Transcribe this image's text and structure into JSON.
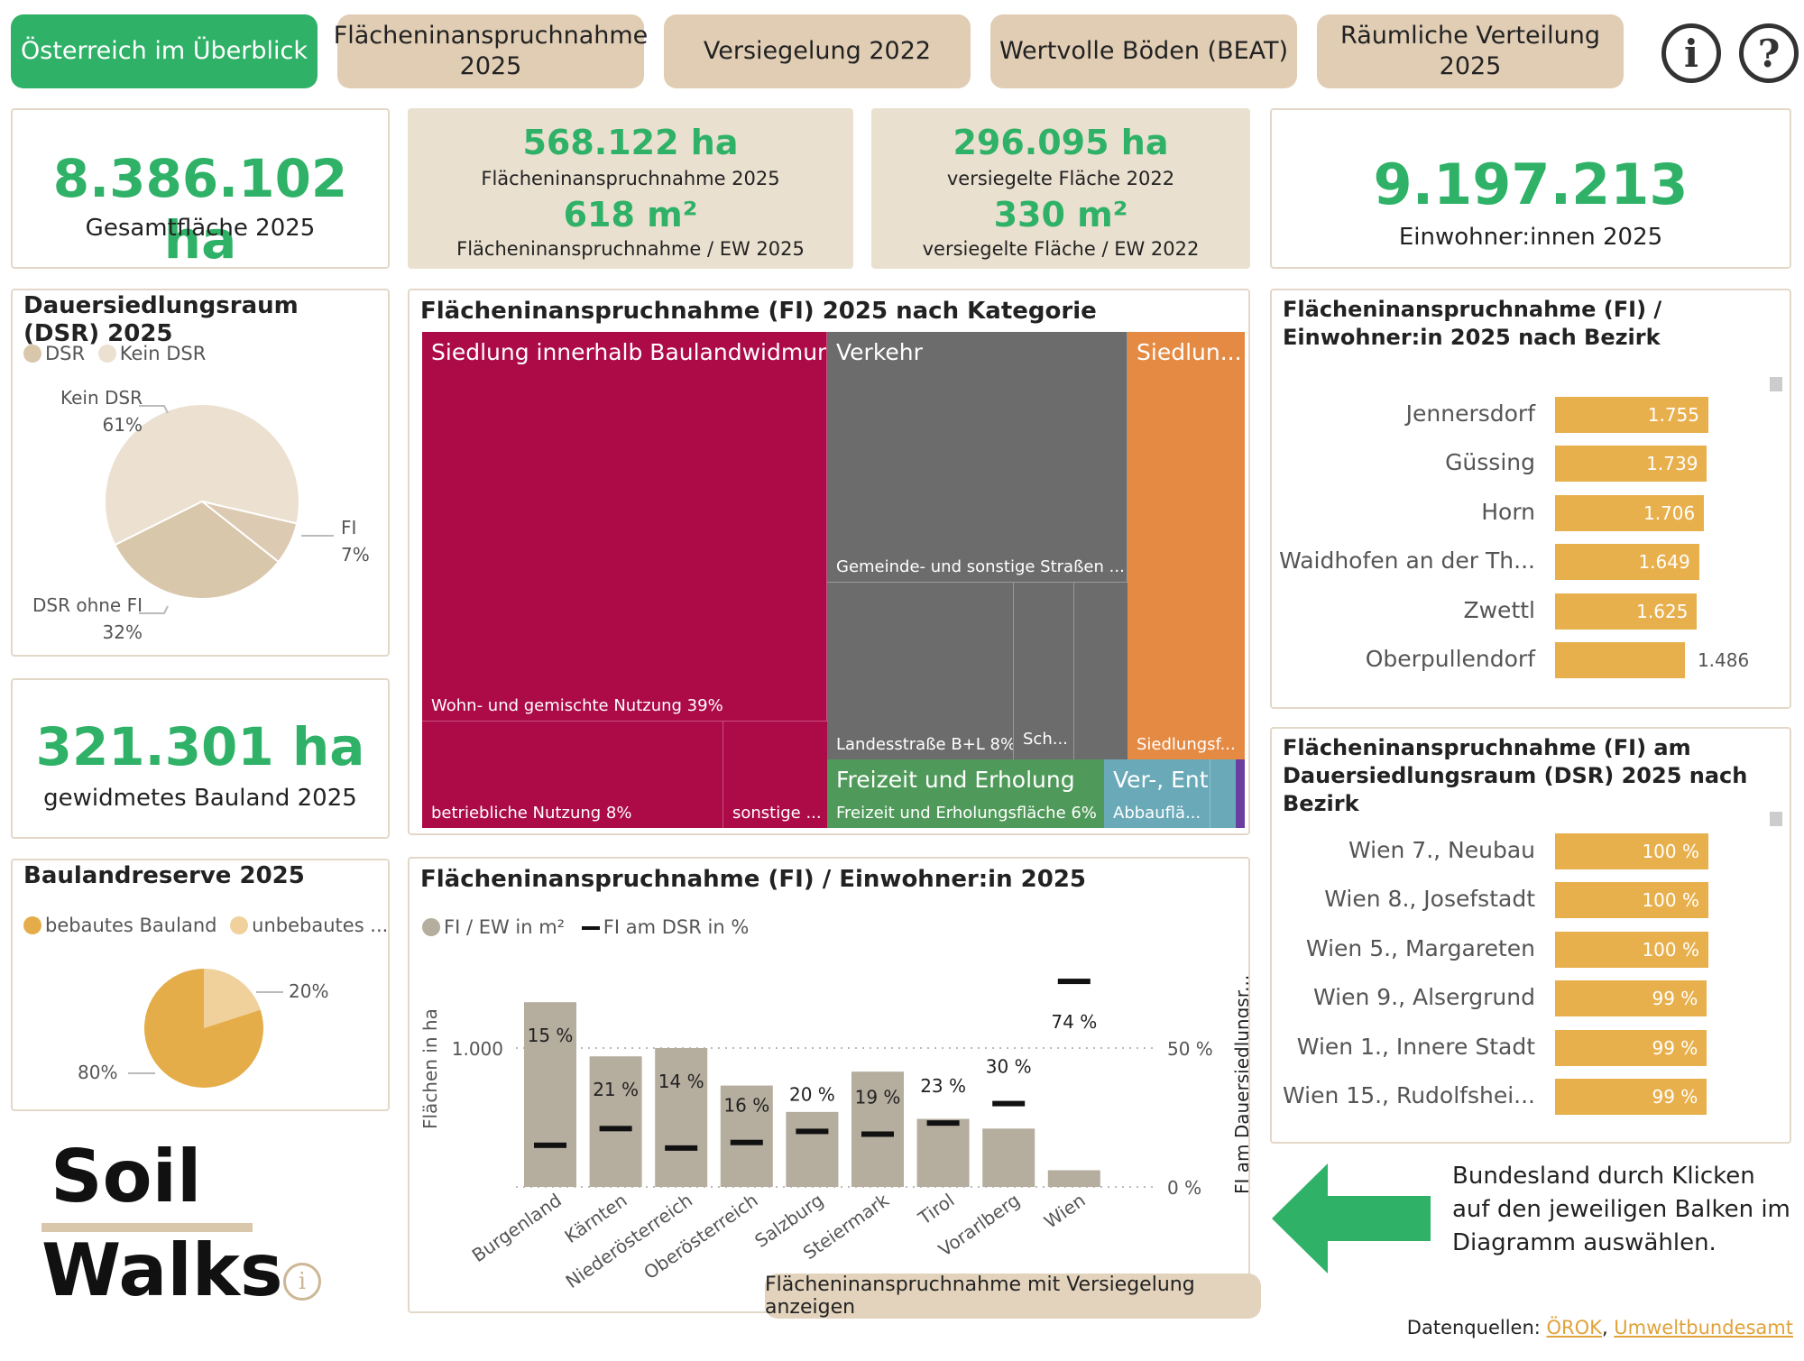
{
  "tabs": [
    {
      "label": "Österreich im Überblick",
      "active": true
    },
    {
      "label": "Flächeninanspruchnahme 2025"
    },
    {
      "label": "Versiegelung 2022"
    },
    {
      "label": "Wertvolle Böden (BEAT)"
    },
    {
      "label": "Räumliche Verteilung 2025"
    }
  ],
  "icons": {
    "info": "info-icon",
    "help": "help-icon"
  },
  "kpis": {
    "gesamt_value": "8.386.102 ha",
    "gesamt_label": "Gesamtfläche 2025",
    "fi_value": "568.122 ha",
    "fi_label": "Flächeninanspruchnahme 2025",
    "fi_ew_value": "618 m²",
    "fi_ew_label": "Flächeninanspruchnahme / EW 2025",
    "vers_value": "296.095 ha",
    "vers_label": "versiegelte Fläche 2022",
    "vers_ew_value": "330 m²",
    "vers_ew_label": "versiegelte Fläche / EW 2022",
    "ew_value": "9.197.213",
    "ew_label": "Einwohner:innen 2025",
    "bauland_value": "321.301 ha",
    "bauland_label": "gewidmetes Bauland 2025"
  },
  "dsr": {
    "title": "Dauersiedlungsraum (DSR) 2025",
    "legend": [
      "DSR",
      "Kein DSR"
    ],
    "labels": [
      {
        "name": "Kein DSR",
        "pct": "61%"
      },
      {
        "name": "FI",
        "pct": "7%"
      },
      {
        "name": "DSR ohne FI",
        "pct": "32%"
      }
    ],
    "colors": {
      "kein": "#ece1d0",
      "fi": "#dccbb2",
      "dsr": "#d9c7ac"
    }
  },
  "reserve": {
    "title": "Baulandreserve 2025",
    "legend": [
      "bebautes Bauland",
      "unbebautes ..."
    ],
    "labels": [
      "20%",
      "80%"
    ],
    "colors": {
      "bebaut": "#e5ad4a",
      "unbebaut": "#f0d19c"
    }
  },
  "treemap": {
    "title": "Flächeninanspruchnahme (FI) 2025 nach Kategorie",
    "cells": [
      {
        "title": "Siedlung innerhalb Baulandwidmung",
        "sub": "Wohn- und gemischte Nutzung 39%"
      },
      {
        "title": "",
        "sub": "betriebliche Nutzung 8%"
      },
      {
        "title": "",
        "sub": "sonstige ..."
      },
      {
        "title": "Verkehr",
        "sub": "Gemeinde- und sonstige Straßen ..."
      },
      {
        "title": "",
        "sub": "Landesstraße B+L 8%"
      },
      {
        "title": "",
        "sub": "Sch..."
      },
      {
        "title": "Siedlun...",
        "sub": "Siedlungsf..."
      },
      {
        "title": "Freizeit und Erholung",
        "sub": "Freizeit und Erholungsfläche 6%"
      },
      {
        "title": "Ver-, Ents...",
        "sub": "Abbauflä..."
      }
    ],
    "colors": {
      "siedlung": "#ad0b48",
      "verkehr": "#6c6c6c",
      "orange": "#e58a43",
      "green": "#4f9a5a",
      "teal": "#6aa9b8",
      "purple": "#6a3ea0"
    }
  },
  "bezirk_ew": {
    "title": "Flächeninanspruchnahme (FI) / Einwohner:in 2025 nach Bezirk",
    "rows": [
      {
        "name": "Jennersdorf",
        "value": 1755,
        "label": "1.755"
      },
      {
        "name": "Güssing",
        "value": 1739,
        "label": "1.739"
      },
      {
        "name": "Horn",
        "value": 1706,
        "label": "1.706"
      },
      {
        "name": "Waidhofen an der Th...",
        "value": 1649,
        "label": "1.649"
      },
      {
        "name": "Zwettl",
        "value": 1625,
        "label": "1.625"
      },
      {
        "name": "Oberpullendorf",
        "value": 1486,
        "label": "1.486"
      }
    ]
  },
  "bezirk_dsr": {
    "title": "Flächeninanspruchnahme (FI) am Dauersiedlungsraum (DSR) 2025 nach Bezirk",
    "rows": [
      {
        "name": "Wien  7., Neubau",
        "value": 100,
        "label": "100 %"
      },
      {
        "name": "Wien  8., Josefstadt",
        "value": 100,
        "label": "100 %"
      },
      {
        "name": "Wien  5., Margareten",
        "value": 100,
        "label": "100 %"
      },
      {
        "name": "Wien  9., Alsergrund",
        "value": 99,
        "label": "99 %"
      },
      {
        "name": "Wien  1., Innere Stadt",
        "value": 99,
        "label": "99 %"
      },
      {
        "name": "Wien  15., Rudolfshei...",
        "value": 99,
        "label": "99 %"
      }
    ]
  },
  "chart_data": {
    "type": "bar",
    "title": "Flächeninanspruchnahme (FI) / Einwohner:in 2025",
    "legend": [
      "FI / EW in m²",
      "FI am DSR in %"
    ],
    "ylabel": "Flächen in ha",
    "y2label": "FI am Dauersiedlungsr...",
    "y_tick": "1.000",
    "y2_ticks": [
      "50 %",
      "0 %"
    ],
    "categories": [
      "Burgenland",
      "Kärnten",
      "Niederösterreich",
      "Oberösterreich",
      "Salzburg",
      "Steiermark",
      "Tirol",
      "Vorarlberg",
      "Wien"
    ],
    "series": [
      {
        "name": "FI / EW in m²",
        "values": [
          1330,
          940,
          1000,
          730,
          540,
          830,
          490,
          420,
          120
        ]
      },
      {
        "name": "FI am DSR in %",
        "values": [
          15,
          21,
          14,
          16,
          20,
          19,
          23,
          30,
          74
        ],
        "labels": [
          "15 %",
          "21 %",
          "14 %",
          "16 %",
          "20 %",
          "19 %",
          "23 %",
          "30 %",
          "74 %"
        ]
      }
    ],
    "ylim": [
      0,
      1500
    ],
    "y2lim": [
      0,
      85
    ],
    "bar_color": "#b5ad9e",
    "marker_color": "#111111"
  },
  "fi_button": "Flächeninanspruchnahme mit Versiegelung anzeigen",
  "logo": {
    "line1": "Soil",
    "line2": "Walks"
  },
  "hint": "Bundesland durch Klicken auf den jeweiligen Balken im Diagramm auswählen.",
  "sources": {
    "prefix": "Datenquellen: ",
    "a": "ÖROK",
    "sep": ", ",
    "b": "Umweltbundesamt"
  },
  "accent": "#2fb267"
}
